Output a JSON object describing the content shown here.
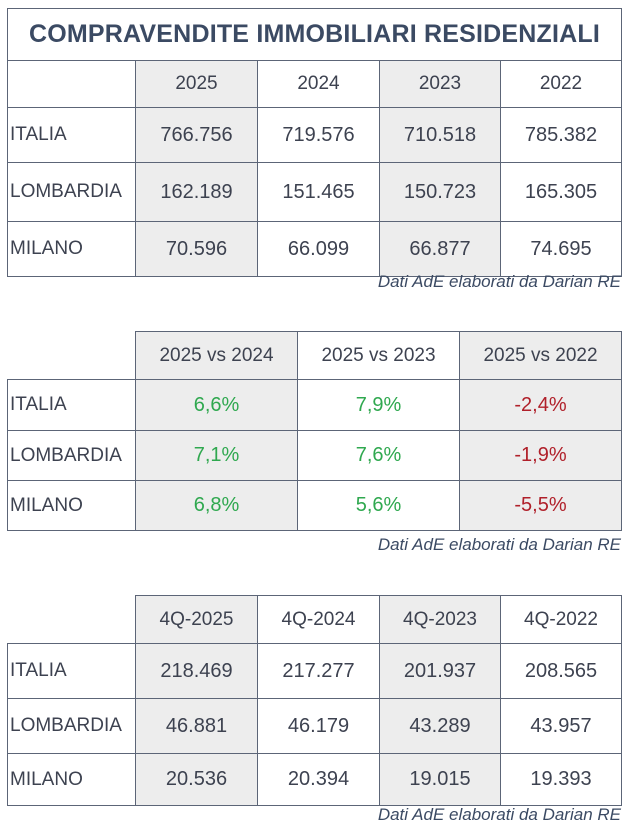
{
  "table1": {
    "title": "COMPRAVENDITE IMMOBILIARI RESIDENZIALI",
    "columns": [
      "2025",
      "2024",
      "2023",
      "2022"
    ],
    "rows": [
      {
        "label": "ITALIA",
        "values": [
          "766.756",
          "719.576",
          "710.518",
          "785.382"
        ]
      },
      {
        "label": "LOMBARDIA",
        "values": [
          "162.189",
          "151.465",
          "150.723",
          "165.305"
        ]
      },
      {
        "label": "MILANO",
        "values": [
          "70.596",
          "66.099",
          "66.877",
          "74.695"
        ]
      }
    ],
    "source": "Dati AdE elaborati da Darian RE"
  },
  "table2": {
    "columns": [
      "2025 vs 2024",
      "2025 vs 2023",
      "2025 vs 2022"
    ],
    "rows": [
      {
        "label": "ITALIA",
        "values": [
          "6,6%",
          "7,9%",
          "-2,4%"
        ]
      },
      {
        "label": "LOMBARDIA",
        "values": [
          "7,1%",
          "7,6%",
          "-1,9%"
        ]
      },
      {
        "label": "MILANO",
        "values": [
          "6,8%",
          "5,6%",
          "-5,5%"
        ]
      }
    ],
    "source": "Dati AdE elaborati da Darian RE",
    "colors": {
      "positive": "#2fa84f",
      "negative": "#b0202a"
    }
  },
  "table3": {
    "columns": [
      "4Q-2025",
      "4Q-2024",
      "4Q-2023",
      "4Q-2022"
    ],
    "rows": [
      {
        "label": "ITALIA",
        "values": [
          "218.469",
          "217.277",
          "201.937",
          "208.565"
        ]
      },
      {
        "label": "LOMBARDIA",
        "values": [
          "46.881",
          "46.179",
          "43.289",
          "43.957"
        ]
      },
      {
        "label": "MILANO",
        "values": [
          "20.536",
          "20.394",
          "19.015",
          "19.393"
        ]
      }
    ],
    "source": "Dati AdE elaborati da Darian RE"
  }
}
